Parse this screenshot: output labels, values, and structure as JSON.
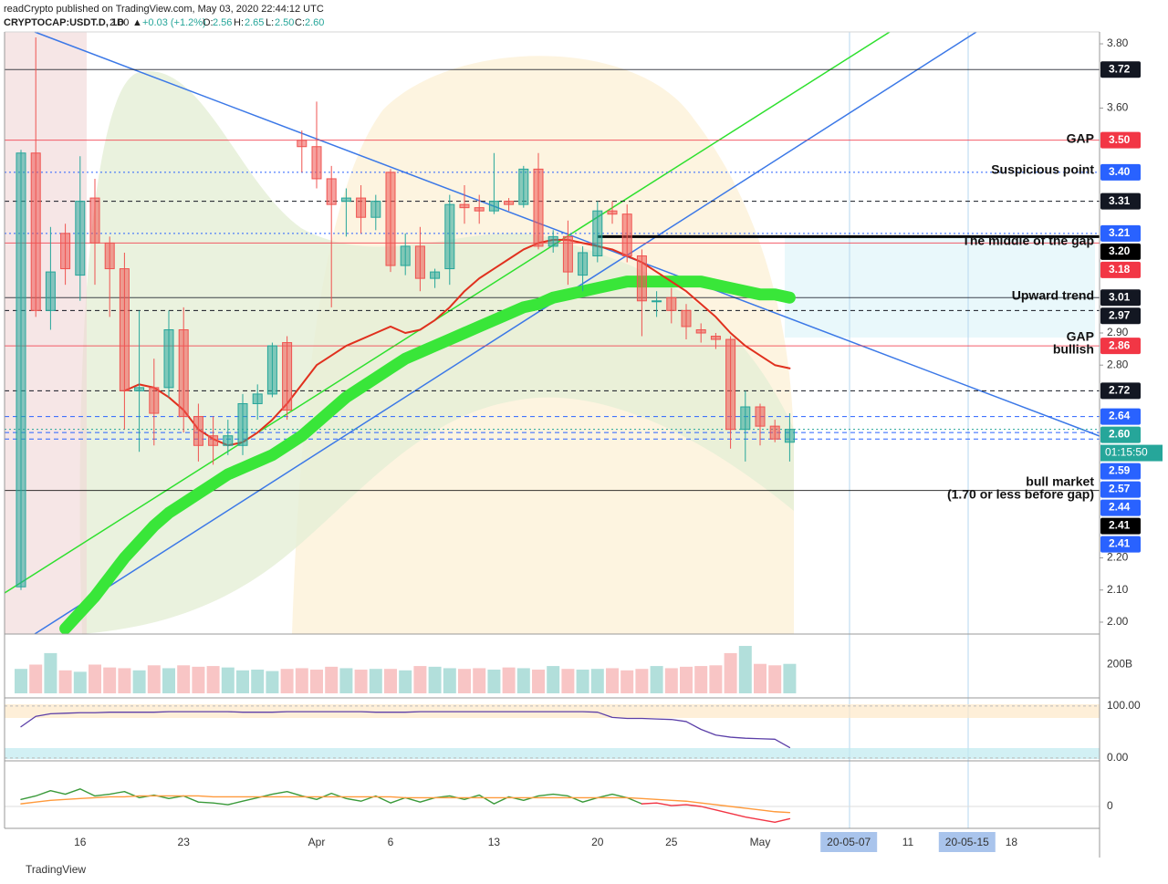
{
  "header": {
    "author": "readCrypto published on TradingView.com, May 03, 2020 22:44:12 UTC",
    "symbol": "CRYPTOCAP:USDT.D, 1D",
    "last": "2.60",
    "change": "+0.03 (+1.2%)",
    "open_label": "O:",
    "open": "2.56",
    "high_label": "H:",
    "high": "2.65",
    "low_label": "L:",
    "low": "2.50",
    "close_label": "C:",
    "close": "2.60"
  },
  "footer": "TradingView",
  "annotations": [
    "GAP",
    "Suspicious point",
    "The middle of the gap",
    "Upward trend",
    "GAP",
    "bullish",
    "bull market",
    "(1.70 or less before gap)"
  ],
  "countdown": "01:15:50",
  "chart_data": {
    "type": "candlestick",
    "categories": [
      null,
      null,
      null,
      null,
      "16",
      null,
      null,
      null,
      null,
      null,
      null,
      "23",
      null,
      null,
      null,
      null,
      null,
      null,
      null,
      null,
      "Apr",
      null,
      null,
      null,
      null,
      "6",
      null,
      null,
      null,
      null,
      null,
      null,
      "13",
      null,
      null,
      null,
      null,
      null,
      null,
      "20",
      null,
      null,
      null,
      null,
      "25",
      null,
      null,
      null,
      null,
      null,
      "May",
      null,
      null,
      null,
      null,
      null,
      "20-05-07",
      null,
      null,
      null,
      "11",
      null,
      null,
      null,
      "20-05-15",
      null,
      null,
      "18",
      null,
      null
    ],
    "ohlc": {
      "open": [
        2.11,
        3.46,
        2.97,
        3.21,
        3.08,
        3.32,
        3.18,
        3.1,
        2.72,
        2.73,
        2.73,
        2.91,
        2.64,
        2.58,
        2.55,
        2.55,
        2.68,
        2.71,
        2.87,
        3.5,
        3.48,
        3.38,
        3.31,
        3.32,
        3.26,
        3.4,
        3.11,
        3.17,
        3.07,
        3.1,
        3.3,
        3.29,
        3.28,
        3.31,
        3.3,
        3.41,
        3.17,
        3.2,
        3.08,
        3.14,
        3.28,
        3.27,
        3.14,
        3.0,
        3.01,
        2.97,
        2.91,
        2.89,
        2.88,
        2.6,
        2.67,
        2.61,
        2.56,
        null,
        null,
        null,
        null,
        null,
        null,
        null,
        null,
        null,
        null,
        null,
        null,
        null,
        null,
        null,
        null,
        null
      ],
      "high": [
        3.47,
        3.82,
        3.23,
        3.24,
        3.45,
        3.38,
        3.2,
        3.15,
        2.97,
        2.82,
        2.97,
        2.98,
        2.68,
        2.64,
        2.63,
        2.71,
        2.74,
        2.87,
        2.89,
        3.53,
        3.62,
        3.42,
        3.35,
        3.36,
        3.33,
        3.41,
        3.21,
        3.23,
        3.1,
        3.33,
        3.36,
        3.33,
        3.46,
        3.32,
        3.42,
        3.46,
        3.22,
        3.25,
        3.17,
        3.31,
        3.31,
        3.3,
        3.16,
        3.03,
        3.04,
        2.99,
        2.93,
        2.9,
        2.89,
        2.72,
        2.68,
        2.63,
        2.65,
        null,
        null,
        null,
        null,
        null,
        null,
        null,
        null,
        null,
        null,
        null,
        null,
        null,
        null,
        null,
        null,
        null
      ],
      "low": [
        2.1,
        2.95,
        2.91,
        3.05,
        3.0,
        3.05,
        2.95,
        2.6,
        2.53,
        2.55,
        2.7,
        2.59,
        2.5,
        2.49,
        2.52,
        2.52,
        2.63,
        2.7,
        2.63,
        3.4,
        3.35,
        2.98,
        3.2,
        3.21,
        3.22,
        3.09,
        3.08,
        3.03,
        3.04,
        3.05,
        3.24,
        3.24,
        3.27,
        3.28,
        3.29,
        3.16,
        3.15,
        3.05,
        3.03,
        3.12,
        3.24,
        3.12,
        2.89,
        2.95,
        2.93,
        2.88,
        2.87,
        2.85,
        2.54,
        2.5,
        2.55,
        2.56,
        2.5,
        null,
        null,
        null,
        null,
        null,
        null,
        null,
        null,
        null,
        null,
        null,
        null,
        null,
        null,
        null,
        null,
        null
      ],
      "close": [
        3.46,
        2.97,
        3.09,
        3.1,
        3.31,
        3.18,
        3.1,
        2.72,
        2.73,
        2.65,
        2.91,
        2.64,
        2.55,
        2.55,
        2.58,
        2.68,
        2.71,
        2.86,
        2.66,
        3.48,
        3.38,
        3.3,
        3.32,
        3.26,
        3.31,
        3.11,
        3.17,
        3.07,
        3.09,
        3.3,
        3.29,
        3.28,
        3.31,
        3.3,
        3.41,
        3.17,
        3.2,
        3.09,
        3.15,
        3.28,
        3.27,
        3.14,
        3.0,
        3.0,
        2.97,
        2.92,
        2.9,
        2.88,
        2.6,
        2.67,
        2.61,
        2.57,
        2.6,
        null,
        null,
        null,
        null,
        null,
        null,
        null,
        null,
        null,
        null,
        null,
        null,
        null,
        null,
        null,
        null,
        null
      ]
    },
    "up_color": "#26a69a",
    "down_color": "#ef5350",
    "series": [
      {
        "color": "#39e639",
        "width": 13,
        "values": [
          null,
          null,
          null,
          1.98,
          2.03,
          2.08,
          2.14,
          2.2,
          2.25,
          2.3,
          2.34,
          2.37,
          2.4,
          2.43,
          2.46,
          2.48,
          2.5,
          2.52,
          2.55,
          2.58,
          2.62,
          2.66,
          2.7,
          2.73,
          2.76,
          2.79,
          2.82,
          2.84,
          2.86,
          2.88,
          2.9,
          2.92,
          2.94,
          2.96,
          2.98,
          2.99,
          3.01,
          3.02,
          3.03,
          3.04,
          3.05,
          3.06,
          3.06,
          3.06,
          3.06,
          3.06,
          3.06,
          3.05,
          3.04,
          3.03,
          3.02,
          3.02,
          3.01,
          null,
          null,
          null,
          null,
          null,
          null,
          null,
          null,
          null,
          null,
          null,
          null,
          null,
          null,
          null,
          null,
          null
        ]
      },
      {
        "color": "#e0301e",
        "width": 2,
        "values": [
          null,
          null,
          null,
          null,
          null,
          null,
          null,
          2.72,
          2.74,
          2.73,
          2.7,
          2.66,
          2.6,
          2.57,
          2.55,
          2.56,
          2.59,
          2.63,
          2.68,
          2.74,
          2.8,
          2.83,
          2.86,
          2.88,
          2.9,
          2.92,
          2.9,
          2.91,
          2.94,
          2.98,
          3.03,
          3.07,
          3.1,
          3.13,
          3.16,
          3.18,
          3.19,
          3.19,
          3.18,
          3.17,
          3.16,
          3.14,
          3.12,
          3.09,
          3.06,
          3.03,
          2.99,
          2.95,
          2.9,
          2.86,
          2.83,
          2.8,
          2.79,
          null,
          null,
          null,
          null,
          null,
          null,
          null,
          null,
          null,
          null,
          null,
          null,
          null,
          null,
          null,
          null,
          null
        ]
      }
    ],
    "ylim": [
      1.963,
      3.837
    ],
    "yticks": [
      {
        "value": 3.8,
        "label": "3.80"
      },
      {
        "value": 3.6,
        "label": "3.60"
      },
      {
        "value": 2.9,
        "label": "2.90"
      },
      {
        "value": 2.8,
        "label": "2.80"
      },
      {
        "value": 2.2,
        "label": "2.20"
      },
      {
        "value": 2.1,
        "label": "2.10"
      },
      {
        "value": 2.0,
        "label": "2.00"
      }
    ],
    "levels": [
      {
        "value": 3.72,
        "label": "3.72",
        "color": "#131722",
        "style": "solid"
      },
      {
        "value": 3.5,
        "label": "3.50",
        "color": "#f23645",
        "style": "solid"
      },
      {
        "value": 3.4,
        "label": "3.40",
        "color": "#2962ff",
        "style": "dotted"
      },
      {
        "value": 3.31,
        "label": "3.31",
        "color": "#131722",
        "style": "dashed"
      },
      {
        "value": 3.21,
        "label": "3.21",
        "color": "#2962ff",
        "style": "dotted"
      },
      {
        "value": 3.2,
        "label": "3.20",
        "color": "#000000",
        "style": "thick"
      },
      {
        "value": 3.18,
        "label": "3.18",
        "color": "#f23645",
        "style": "solid"
      },
      {
        "value": 3.01,
        "label": "3.01",
        "color": "#131722",
        "style": "solid"
      },
      {
        "value": 2.97,
        "label": "2.97",
        "color": "#131722",
        "style": "dashed"
      },
      {
        "value": 2.86,
        "label": "2.86",
        "color": "#f23645",
        "style": "solid"
      },
      {
        "value": 2.72,
        "label": "2.72",
        "color": "#131722",
        "style": "dashed"
      },
      {
        "value": 2.64,
        "label": "2.64",
        "color": "#2962ff",
        "style": "dashed"
      },
      {
        "value": 2.6,
        "label": "2.60",
        "color": "#26a69a",
        "style": "dotted"
      },
      {
        "value": 2.59,
        "label": "2.59",
        "color": "#2962ff",
        "style": "dashed"
      },
      {
        "value": 2.57,
        "label": "2.57",
        "color": "#2962ff",
        "style": "dashed"
      },
      {
        "value": 2.44,
        "label": "2.44",
        "color": "#2962ff",
        "style": "none"
      },
      {
        "value": 2.41,
        "label": "2.41",
        "color": "#000000",
        "style": "solid"
      },
      {
        "value": 2.41,
        "label": "2.41",
        "color": "#2962ff",
        "style": "none"
      }
    ],
    "volume": {
      "values": [
        170,
        200,
        280,
        160,
        150,
        200,
        180,
        175,
        160,
        195,
        175,
        195,
        185,
        190,
        180,
        160,
        165,
        155,
        170,
        175,
        165,
        185,
        175,
        165,
        170,
        170,
        160,
        190,
        185,
        175,
        170,
        175,
        165,
        180,
        175,
        165,
        190,
        170,
        165,
        170,
        175,
        160,
        170,
        190,
        175,
        185,
        190,
        195,
        280,
        330,
        205,
        195,
        205,
        null,
        null,
        null,
        null,
        null,
        null,
        null,
        null,
        null,
        null,
        null,
        null,
        null,
        null,
        null,
        null,
        null
      ],
      "ylim": [
        0,
        400
      ],
      "yticks": [
        {
          "value": 200,
          "label": "200B"
        }
      ]
    },
    "stoch": {
      "color": "#5b3fa8",
      "values": [
        60,
        80,
        85,
        86,
        87,
        87,
        88,
        88,
        88,
        88,
        89,
        89,
        89,
        89,
        89,
        88,
        88,
        88,
        89,
        89,
        89,
        89,
        89,
        89,
        88,
        88,
        88,
        89,
        89,
        89,
        89,
        89,
        89,
        89,
        89,
        89,
        89,
        89,
        89,
        88,
        78,
        76,
        76,
        75,
        74,
        70,
        55,
        44,
        40,
        38,
        37,
        36,
        20,
        null,
        null,
        null,
        null,
        null,
        null,
        null,
        null,
        null,
        null,
        null,
        null,
        null,
        null,
        null,
        null,
        null
      ],
      "ylim": [
        -2,
        112
      ],
      "yticks": [
        {
          "value": 100,
          "label": "100.00"
        },
        {
          "value": 0,
          "label": "0.00"
        }
      ]
    },
    "oscillator": {
      "ylim": [
        -25,
        50
      ],
      "yticks": [
        0
      ],
      "series": [
        {
          "color": "#3a9a3a",
          "values": [
            8,
            12,
            18,
            14,
            20,
            12,
            14,
            17,
            10,
            13,
            9,
            12,
            5,
            4,
            2,
            6,
            10,
            14,
            17,
            12,
            8,
            15,
            9,
            6,
            12,
            4,
            10,
            5,
            10,
            12,
            8,
            13,
            3,
            11,
            7,
            12,
            14,
            12,
            5,
            10,
            14,
            10,
            3,
            null,
            null,
            null,
            null,
            null,
            null,
            null,
            null,
            null,
            null,
            null,
            null,
            null,
            null,
            null,
            null,
            null,
            null,
            null,
            null,
            null,
            null,
            null,
            null,
            null,
            null,
            null
          ]
        },
        {
          "color": "#f23645",
          "values": [
            null,
            null,
            null,
            null,
            null,
            null,
            null,
            null,
            null,
            null,
            null,
            null,
            null,
            null,
            null,
            null,
            null,
            null,
            null,
            null,
            null,
            null,
            null,
            null,
            null,
            null,
            null,
            null,
            null,
            null,
            null,
            null,
            null,
            null,
            null,
            null,
            null,
            null,
            null,
            null,
            null,
            null,
            3,
            4,
            1,
            2,
            0,
            -4,
            -8,
            -12,
            -15,
            -18,
            -14,
            null,
            null,
            null,
            null,
            null,
            null,
            null,
            null,
            null,
            null,
            null,
            null,
            null,
            null,
            null,
            null,
            null
          ]
        },
        {
          "color": "#ff9a3c",
          "values": [
            3,
            5,
            7,
            8,
            9,
            10,
            11,
            11,
            12,
            12,
            12,
            12,
            12,
            11,
            11,
            11,
            11,
            11,
            11,
            11,
            11,
            11,
            11,
            11,
            11,
            11,
            10,
            10,
            10,
            10,
            10,
            10,
            10,
            10,
            10,
            10,
            10,
            10,
            10,
            10,
            10,
            10,
            9,
            8,
            7,
            6,
            4,
            2,
            0,
            -2,
            -4,
            -6,
            -7,
            null,
            null,
            null,
            null,
            null,
            null,
            null,
            null,
            null,
            null,
            null,
            null,
            null,
            null,
            null,
            null,
            null
          ]
        }
      ]
    }
  }
}
